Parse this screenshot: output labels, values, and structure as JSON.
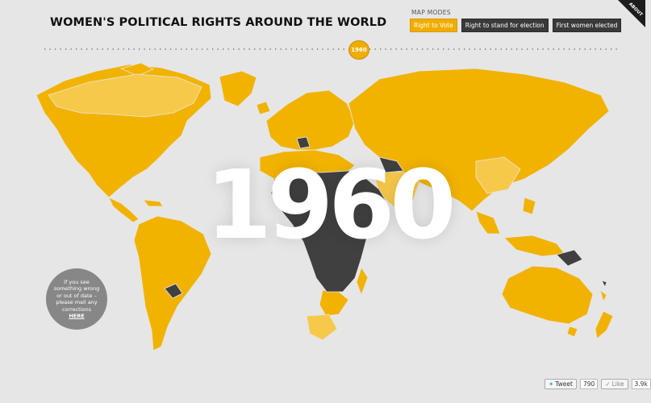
{
  "header": {
    "title": "WOMEN'S POLITICAL RIGHTS AROUND THE WORLD"
  },
  "map_modes": {
    "label": "MAP MODES",
    "buttons": [
      {
        "label": "Right to Vote",
        "active": true
      },
      {
        "label": "Right to stand for election",
        "active": false
      },
      {
        "label": "First women elected",
        "active": false
      }
    ]
  },
  "about": {
    "label": "ABOUT"
  },
  "timeline": {
    "current_year": "1960"
  },
  "map": {
    "colors": {
      "granted": "#f2b300",
      "granted_light": "#f7c94a",
      "not_granted": "#404040",
      "background": "#e6e6e6"
    }
  },
  "big_year": "1960",
  "corrections": {
    "line1": "If you see",
    "line2": "something wrong",
    "line3": "or out of date –",
    "line4": "please mail any",
    "line5": "corrections",
    "link": "HERE"
  },
  "social": {
    "tweet_label": "Tweet",
    "tweet_count": "790",
    "like_label": "Like",
    "like_count": "3.9k"
  }
}
